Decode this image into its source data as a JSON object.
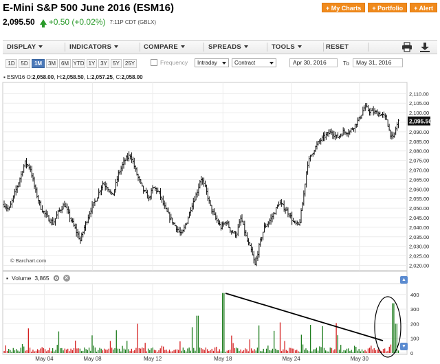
{
  "header": {
    "title": "E-Mini S&P 500 June 2016 (ESM16)",
    "last_price": "2,095.50",
    "change": "+0.50 (+0.02%)",
    "time": "7:11P CDT (GBLX)",
    "buttons": [
      "+ My Charts",
      "+ Portfolio",
      "+ Alert"
    ]
  },
  "menu": {
    "items": [
      "DISPLAY",
      "INDICATORS",
      "COMPARE",
      "SPREADS",
      "TOOLS",
      "RESET"
    ],
    "print_icon": "printer-icon",
    "download_icon": "download-icon"
  },
  "toolbar": {
    "timeframes": [
      "1D",
      "5D",
      "1M",
      "3M",
      "6M",
      "YTD",
      "1Y",
      "3Y",
      "5Y",
      "25Y"
    ],
    "active_timeframe": "1M",
    "frequency_label": "Frequency",
    "frequency_value": "Intraday",
    "contract_value": "Contract",
    "date_from": "Apr 30, 2016",
    "to_label": "To",
    "date_to": "May 31, 2016"
  },
  "ohlc": {
    "symbol": "ESM16",
    "open_label": "O:",
    "open": "2,058.00",
    "high_label": "H:",
    "high": "2,058.50",
    "low_label": "L:",
    "low": "2,057.25",
    "close_label": "C:",
    "close": "2,058.00"
  },
  "volume_panel": {
    "label": "Volume",
    "value": "3,865"
  },
  "watermark": "© Barchart.com",
  "colors": {
    "up": "#1e7d1e",
    "down": "#d42020",
    "bar": "#111111",
    "accent": "#f08a1c",
    "button_blue": "#4a78b8"
  },
  "chart_data": {
    "type": "bar",
    "subtype": "ohlc-intraday",
    "x_ticks": [
      "May 04",
      "May 08",
      "May 12",
      "May 18",
      "May 24",
      "May 30"
    ],
    "price_axis": {
      "ticks": [
        2020,
        2025,
        2030,
        2035,
        2040,
        2045,
        2050,
        2055,
        2060,
        2065,
        2070,
        2075,
        2080,
        2085,
        2090,
        2095,
        2100,
        2105,
        2110
      ],
      "tick_labels": [
        "2,020.00",
        "2,025.00",
        "2,030.00",
        "2,035.00",
        "2,040.00",
        "2,045.00",
        "2,050.00",
        "2,055.00",
        "2,060.00",
        "2,065.00",
        "2,070.00",
        "2,075.00",
        "2,080.00",
        "2,085.00",
        "2,090.00",
        "2,095.00",
        "2,100.00",
        "2,105.00",
        "2,110.00"
      ],
      "range": [
        2018,
        2113
      ],
      "last_price_label": "2,095.50",
      "last_price": 2095.5
    },
    "volume_axis": {
      "ticks": [
        0,
        100,
        200,
        300,
        400
      ],
      "tick_labels": [
        "0",
        "100",
        "200",
        "300",
        "400"
      ],
      "range": [
        0,
        460
      ]
    },
    "price_path": [
      [
        0.0,
        2052
      ],
      [
        0.012,
        2049
      ],
      [
        0.025,
        2057
      ],
      [
        0.04,
        2066
      ],
      [
        0.052,
        2074
      ],
      [
        0.065,
        2071
      ],
      [
        0.078,
        2059
      ],
      [
        0.092,
        2050
      ],
      [
        0.108,
        2045
      ],
      [
        0.122,
        2042
      ],
      [
        0.135,
        2048
      ],
      [
        0.15,
        2052
      ],
      [
        0.162,
        2046
      ],
      [
        0.175,
        2040
      ],
      [
        0.19,
        2033
      ],
      [
        0.2,
        2040
      ],
      [
        0.215,
        2049
      ],
      [
        0.23,
        2055
      ],
      [
        0.245,
        2063
      ],
      [
        0.258,
        2061
      ],
      [
        0.27,
        2056
      ],
      [
        0.285,
        2068
      ],
      [
        0.3,
        2075
      ],
      [
        0.315,
        2078
      ],
      [
        0.33,
        2068
      ],
      [
        0.345,
        2060
      ],
      [
        0.36,
        2055
      ],
      [
        0.372,
        2061
      ],
      [
        0.386,
        2058
      ],
      [
        0.4,
        2050
      ],
      [
        0.413,
        2045
      ],
      [
        0.428,
        2040
      ],
      [
        0.442,
        2036
      ],
      [
        0.455,
        2043
      ],
      [
        0.468,
        2052
      ],
      [
        0.48,
        2058
      ],
      [
        0.49,
        2066
      ],
      [
        0.502,
        2060
      ],
      [
        0.515,
        2050
      ],
      [
        0.528,
        2044
      ],
      [
        0.54,
        2040
      ],
      [
        0.553,
        2043
      ],
      [
        0.565,
        2038
      ],
      [
        0.578,
        2036
      ],
      [
        0.59,
        2045
      ],
      [
        0.605,
        2033
      ],
      [
        0.615,
        2028
      ],
      [
        0.625,
        2020
      ],
      [
        0.635,
        2030
      ],
      [
        0.648,
        2040
      ],
      [
        0.66,
        2043
      ],
      [
        0.672,
        2047
      ],
      [
        0.685,
        2053
      ],
      [
        0.698,
        2050
      ],
      [
        0.71,
        2047
      ],
      [
        0.722,
        2042
      ],
      [
        0.735,
        2041
      ],
      [
        0.745,
        2055
      ],
      [
        0.755,
        2073
      ],
      [
        0.77,
        2080
      ],
      [
        0.785,
        2085
      ],
      [
        0.8,
        2088
      ],
      [
        0.815,
        2090
      ],
      [
        0.83,
        2087
      ],
      [
        0.845,
        2090
      ],
      [
        0.86,
        2090
      ],
      [
        0.872,
        2093
      ],
      [
        0.885,
        2097
      ],
      [
        0.898,
        2103
      ],
      [
        0.91,
        2101
      ],
      [
        0.925,
        2100
      ],
      [
        0.94,
        2099
      ],
      [
        0.952,
        2097
      ],
      [
        0.96,
        2090
      ],
      [
        0.968,
        2086
      ],
      [
        0.976,
        2092
      ],
      [
        0.982,
        2095.5
      ]
    ]
  }
}
